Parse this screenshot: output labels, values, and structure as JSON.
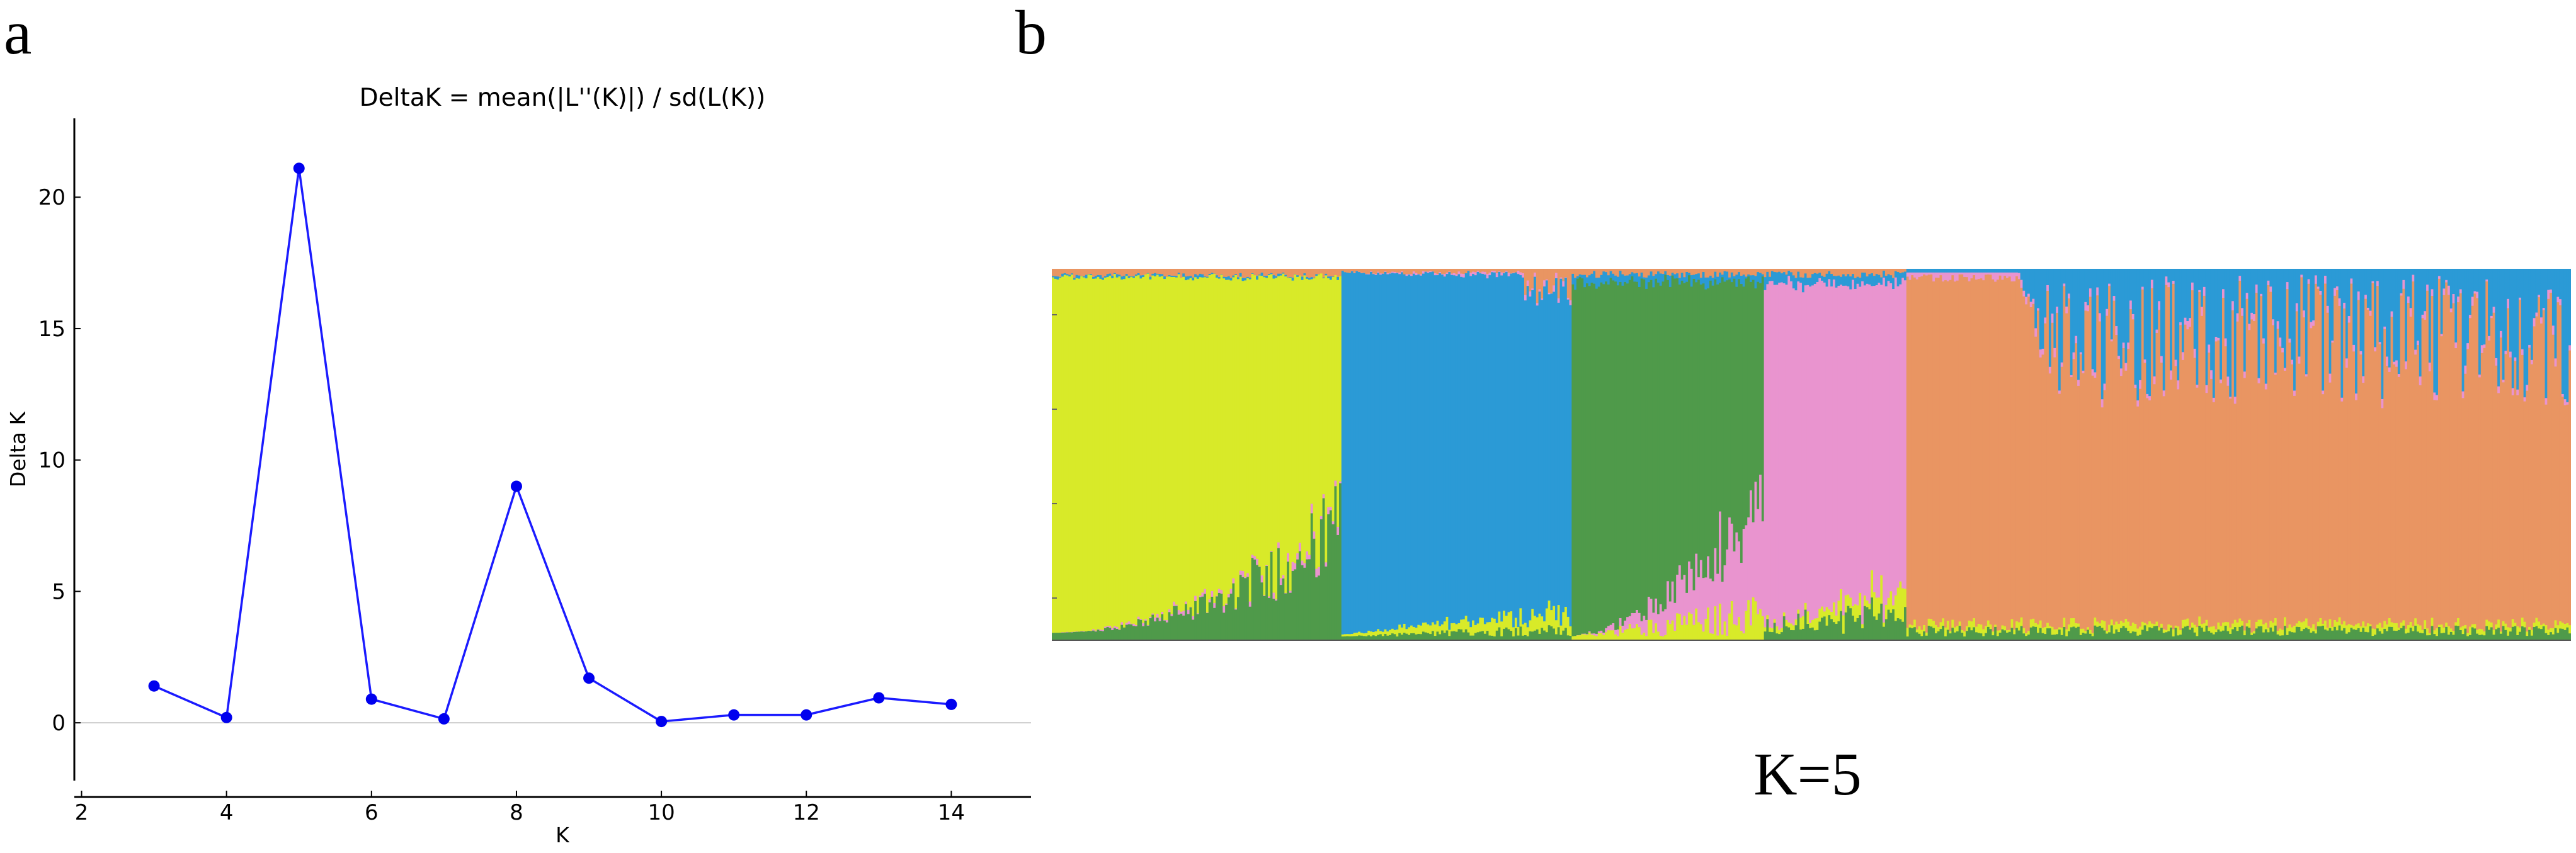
{
  "panels": {
    "a": "a",
    "b": "b"
  },
  "chart_data": [
    {
      "type": "line",
      "title": "DeltaK = mean(|L''(K)|) / sd(L(K))",
      "xlabel": "K",
      "ylabel": "Delta K",
      "x": [
        3,
        4,
        5,
        6,
        7,
        8,
        9,
        10,
        11,
        12,
        13,
        14
      ],
      "series": [
        {
          "values": [
            1.4,
            0.2,
            21.1,
            0.9,
            0.15,
            9.0,
            1.7,
            0.05,
            0.3,
            0.3,
            0.95,
            0.7
          ]
        }
      ],
      "xticks": [
        2,
        4,
        6,
        8,
        10,
        12,
        14
      ],
      "yticks": [
        0,
        5,
        10,
        15,
        20
      ],
      "xlim": [
        1.9,
        15.1
      ],
      "ylim": [
        -2.2,
        23
      ],
      "line_color": "#1b1bff",
      "marker_color": "#0000ee"
    },
    {
      "type": "bar",
      "subtype": "stacked-admixture",
      "label": "K=5",
      "cluster_colors": [
        "#d8ea29",
        "#2b9ad6",
        "#4f9a4a",
        "#e994cf",
        "#e99562"
      ]
    }
  ]
}
